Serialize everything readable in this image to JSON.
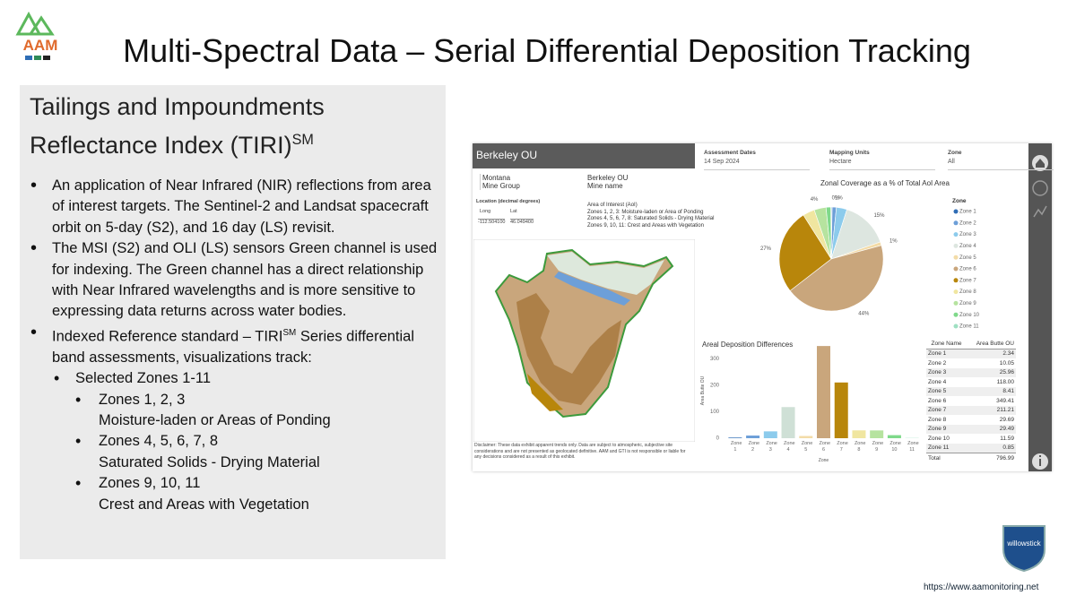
{
  "header": {
    "title": "Multi-Spectral Data – Serial Differential Deposition Tracking",
    "logo_text": "AAM",
    "url": "https://www.aamonitoring.net",
    "badge": "willowstick"
  },
  "panel": {
    "heading": "Tailings and Impoundments Reflectance Index (TIRI)",
    "heading_sup": "SM",
    "bullets": [
      {
        "before": "An application of Near Infrared (NIR) reflections from area of interest targets. The Sentinel-2 and Landsat spacecraft orbit on 5-day (S2), and 16 day (LS) revisit."
      },
      {
        "before": "The MSI (S2) and OLI (LS) sensors Green channel is used for indexing. The Green channel has a direct relationship with Near Infrared wavelengths and is more sensitive to expressing data returns across water bodies."
      },
      {
        "before": "Indexed Reference standard – TIRI",
        "sup": "SM",
        "after": " Series differential band assessments, visualizations track:"
      }
    ],
    "sub_bullet": "Selected Zones 1-11",
    "groups": [
      {
        "zones": "Zones 1, 2, 3",
        "desc": "Moisture-laden or Areas of Ponding"
      },
      {
        "zones": "Zones  4, 5, 6, 7, 8",
        "desc": "Saturated Solids - Drying Material"
      },
      {
        "zones": "Zones 9, 10, 11",
        "desc": "Crest and Areas with Vegetation"
      }
    ]
  },
  "dashboard": {
    "site": "Berkeley OU",
    "state": "Montana",
    "state_label": "Mine Group",
    "mine": "Berkeley OU",
    "mine_label": "Mine name",
    "location_label": "Location (decimal degrees)",
    "long_label": "Long",
    "lat_label": "Lat",
    "long": "-112.504100",
    "lat": "46.049400",
    "aoi": [
      "Area of Interest (AoI)",
      "Zones 1, 2, 3: Moisture-laden or Area of Ponding",
      "Zones 4, 5, 6, 7, 8: Saturated Solids - Drying Material",
      "Zones 9, 10, 11: Crest and Areas with Vegetation"
    ],
    "filters": [
      {
        "label": "Assessment Dates",
        "value": "14 Sep 2024"
      },
      {
        "label": "Mapping Units",
        "value": "Hectare"
      },
      {
        "label": "Zone",
        "value": "All"
      }
    ],
    "disclaimer": "Disclaimer: These data exhibit apparent trends only. Data are subject to atmospheric, subjective site considerations and are not presented as geolocated definitive. AAM and GTI is not responsible or liable for any decisions considered as a result of this exhibit.",
    "pie_chart": {
      "type": "pie",
      "title": "Zonal Coverage as a % of Total AoI Area",
      "legend_title": "Zone",
      "categories": [
        "Zone 1",
        "Zone 2",
        "Zone 3",
        "Zone 4",
        "Zone 5",
        "Zone 6",
        "Zone 7",
        "Zone 8",
        "Zone 9",
        "Zone 10",
        "Zone 11"
      ],
      "values": [
        0.3,
        1.3,
        3.3,
        14.8,
        1.1,
        43.8,
        26.5,
        3.7,
        3.7,
        1.5,
        0.1
      ],
      "value_labels": [
        "0%",
        "1%",
        null,
        "15%",
        "1%",
        "44%",
        "27%",
        null,
        "4%",
        null,
        null
      ],
      "colors": [
        "#2f6db5",
        "#6d9fd8",
        "#8ccbec",
        "#dde6e0",
        "#f3dca8",
        "#c9a67c",
        "#b8860b",
        "#f0e6a0",
        "#b6e39f",
        "#7fd98a",
        "#9fe0c2"
      ]
    },
    "bar_chart": {
      "type": "bar",
      "title": "Areal Deposition Differences",
      "y_label": "Area Butte OU",
      "x_label": "Zone",
      "categories": [
        "Zone 1",
        "Zone 2",
        "Zone 3",
        "Zone 4",
        "Zone 5",
        "Zone 6",
        "Zone 7",
        "Zone 8",
        "Zone 9",
        "Zone 10",
        "Zone 11"
      ],
      "values": [
        2.34,
        10.05,
        25.96,
        118.0,
        8.41,
        349.41,
        211.21,
        29.69,
        29.49,
        11.59,
        0.85
      ],
      "colors": [
        "#2f6db5",
        "#6d9fd8",
        "#8ccbec",
        "#cfe0d6",
        "#f3dca8",
        "#c9a67c",
        "#b8860b",
        "#f0e6a0",
        "#b6e39f",
        "#7fd98a",
        "#9fe0c2"
      ],
      "ylim": [
        0,
        360
      ],
      "yticks": [
        0,
        100,
        200,
        300
      ]
    },
    "table": {
      "headers": [
        "Zone Name",
        "Area Butte OU"
      ],
      "rows": [
        [
          "Zone 1",
          "2.34"
        ],
        [
          "Zone 2",
          "10.05"
        ],
        [
          "Zone 3",
          "25.96"
        ],
        [
          "Zone 4",
          "118.00"
        ],
        [
          "Zone 5",
          "8.41"
        ],
        [
          "Zone 6",
          "349.41"
        ],
        [
          "Zone 7",
          "211.21"
        ],
        [
          "Zone 8",
          "29.69"
        ],
        [
          "Zone 9",
          "29.49"
        ],
        [
          "Zone 10",
          "11.59"
        ],
        [
          "Zone 11",
          "0.85"
        ]
      ],
      "total": [
        "Total",
        "796.99"
      ]
    }
  }
}
